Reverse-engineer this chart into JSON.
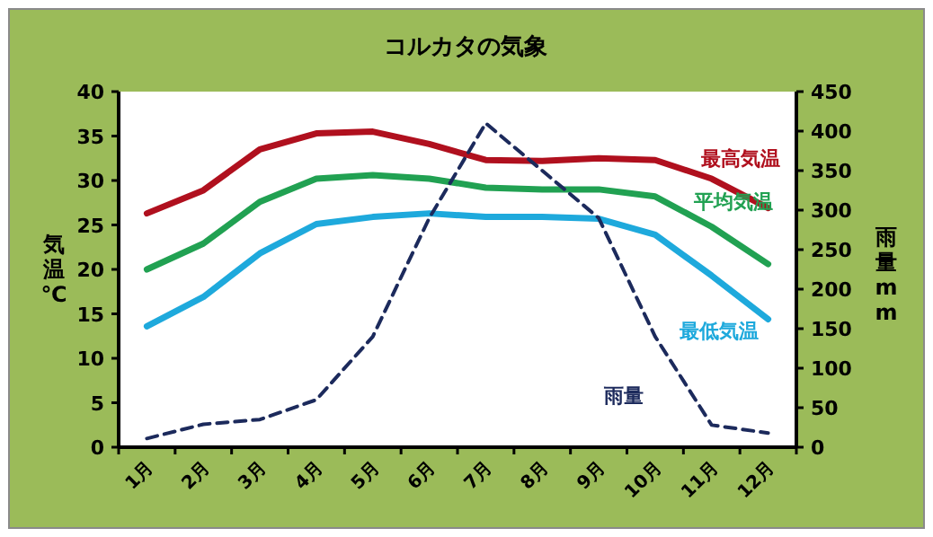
{
  "chart_data": {
    "type": "line",
    "title": "コルカタの気象",
    "ylabel": "気温℃",
    "y2label": "雨量mm",
    "categories": [
      "1月",
      "2月",
      "3月",
      "4月",
      "5月",
      "6月",
      "7月",
      "8月",
      "9月",
      "10月",
      "11月",
      "12月"
    ],
    "series": [
      {
        "name": "最高気温",
        "color": "#b0101e",
        "values": [
          26.3,
          28.9,
          33.5,
          35.3,
          35.5,
          34.1,
          32.3,
          32.2,
          32.5,
          32.3,
          30.2,
          26.9
        ]
      },
      {
        "name": "平均気温",
        "color": "#21a152",
        "values": [
          20.0,
          22.9,
          27.6,
          30.2,
          30.6,
          30.2,
          29.2,
          29.0,
          29.0,
          28.2,
          24.8,
          20.6
        ]
      },
      {
        "name": "最低気温",
        "color": "#1ea9dc",
        "values": [
          13.6,
          16.9,
          21.8,
          25.1,
          25.9,
          26.3,
          25.9,
          25.9,
          25.7,
          23.9,
          19.3,
          14.4
        ]
      },
      {
        "name": "雨量",
        "color": "#1c2a5c",
        "axis": "y2",
        "line_style": "dashed",
        "values": [
          11,
          29,
          35,
          60,
          140,
          290,
          410,
          350,
          290,
          140,
          28,
          18
        ]
      }
    ],
    "ylim": [
      0,
      40
    ],
    "yticks": [
      0,
      5,
      10,
      15,
      20,
      25,
      30,
      35,
      40
    ],
    "y2lim": [
      0,
      450
    ],
    "y2ticks": [
      0,
      50,
      100,
      150,
      200,
      250,
      300,
      350,
      400,
      450
    ],
    "grid": false,
    "legend": false,
    "marker": "none"
  }
}
